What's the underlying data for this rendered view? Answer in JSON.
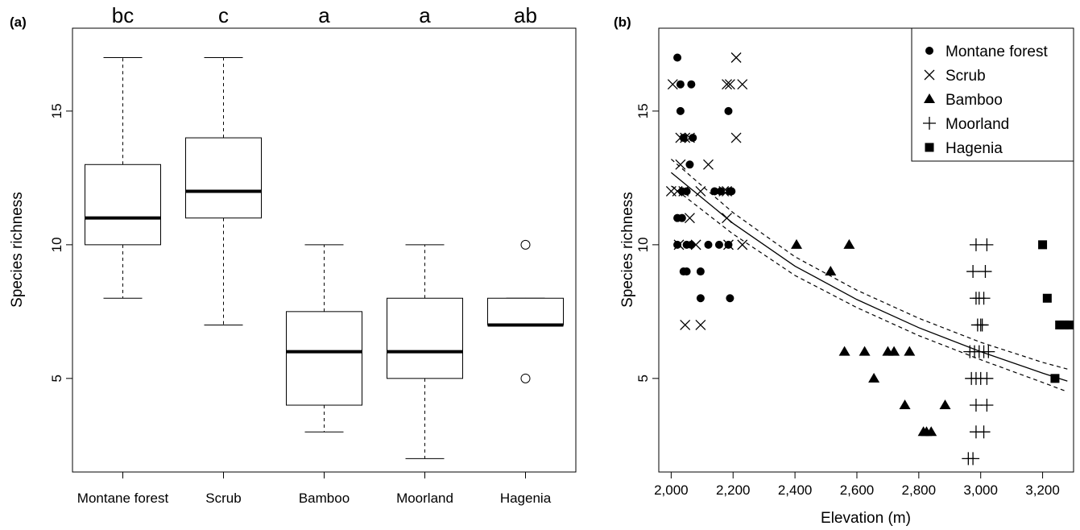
{
  "panels": {
    "a_label": "(a)",
    "b_label": "(b)"
  },
  "chart_data": [
    {
      "type": "box",
      "ylabel": "Species richness",
      "ylim": [
        1.5,
        18.1
      ],
      "yticks": [
        5,
        10,
        15
      ],
      "categories": [
        "Montane forest",
        "Scrub",
        "Bamboo",
        "Moorland",
        "Hagenia"
      ],
      "group_letters": [
        "bc",
        "c",
        "a",
        "a",
        "ab"
      ],
      "boxes": [
        {
          "whisker_low": 8,
          "q1": 10,
          "median": 11,
          "q3": 13,
          "whisker_high": 17,
          "outliers": []
        },
        {
          "whisker_low": 7,
          "q1": 11,
          "median": 12,
          "q3": 14,
          "whisker_high": 17,
          "outliers": []
        },
        {
          "whisker_low": 3,
          "q1": 4,
          "median": 6,
          "q3": 7.5,
          "whisker_high": 10,
          "outliers": []
        },
        {
          "whisker_low": 2,
          "q1": 5,
          "median": 6,
          "q3": 8,
          "whisker_high": 10,
          "outliers": []
        },
        {
          "whisker_low": 7,
          "q1": 7,
          "median": 7,
          "q3": 8,
          "whisker_high": 8,
          "outliers": [
            10,
            5
          ]
        }
      ]
    },
    {
      "type": "scatter",
      "xlabel": "Elevation (m)",
      "ylabel": "Species richness",
      "xlim": [
        1960,
        3300
      ],
      "ylim": [
        1.5,
        18.1
      ],
      "xticks": [
        2000,
        2200,
        2400,
        2600,
        2800,
        3000,
        3200
      ],
      "xtick_labels": [
        "2,000",
        "2,200",
        "2,400",
        "2,600",
        "2,800",
        "3,000",
        "3,200"
      ],
      "yticks": [
        5,
        10,
        15
      ],
      "legend_position": "top-right",
      "series": [
        {
          "name": "Montane forest",
          "marker": "circle",
          "points": [
            [
              2020,
              17
            ],
            [
              2030,
              16
            ],
            [
              2065,
              16
            ],
            [
              2185,
              15
            ],
            [
              2030,
              15
            ],
            [
              2040,
              14
            ],
            [
              2070,
              14
            ],
            [
              2060,
              13
            ],
            [
              2035,
              12
            ],
            [
              2050,
              12
            ],
            [
              2140,
              12
            ],
            [
              2160,
              12
            ],
            [
              2190,
              12
            ],
            [
              2195,
              12
            ],
            [
              2020,
              11
            ],
            [
              2035,
              11
            ],
            [
              2020,
              10
            ],
            [
              2050,
              10
            ],
            [
              2065,
              10
            ],
            [
              2120,
              10
            ],
            [
              2155,
              10
            ],
            [
              2185,
              10
            ],
            [
              2040,
              9
            ],
            [
              2050,
              9
            ],
            [
              2095,
              9
            ],
            [
              2095,
              8
            ],
            [
              2190,
              8
            ]
          ]
        },
        {
          "name": "Scrub",
          "marker": "x",
          "points": [
            [
              2210,
              17
            ],
            [
              2005,
              16
            ],
            [
              2180,
              16
            ],
            [
              2190,
              16
            ],
            [
              2230,
              16
            ],
            [
              2030,
              14
            ],
            [
              2045,
              14
            ],
            [
              2060,
              14
            ],
            [
              2210,
              14
            ],
            [
              2030,
              13
            ],
            [
              2120,
              13
            ],
            [
              2000,
              12
            ],
            [
              2020,
              12
            ],
            [
              2040,
              12
            ],
            [
              2095,
              12
            ],
            [
              2170,
              12
            ],
            [
              2180,
              12
            ],
            [
              2060,
              11
            ],
            [
              2180,
              11
            ],
            [
              2025,
              10
            ],
            [
              2080,
              10
            ],
            [
              2185,
              10
            ],
            [
              2230,
              10
            ],
            [
              2045,
              7
            ],
            [
              2095,
              7
            ]
          ]
        },
        {
          "name": "Bamboo",
          "marker": "triangle",
          "points": [
            [
              2405,
              10
            ],
            [
              2575,
              10
            ],
            [
              2515,
              9
            ],
            [
              2560,
              6
            ],
            [
              2625,
              6
            ],
            [
              2700,
              6
            ],
            [
              2720,
              6
            ],
            [
              2770,
              6
            ],
            [
              2655,
              5
            ],
            [
              2755,
              4
            ],
            [
              2885,
              4
            ],
            [
              2815,
              3
            ],
            [
              2825,
              3
            ],
            [
              2840,
              3
            ]
          ]
        },
        {
          "name": "Moorland",
          "marker": "plus",
          "points": [
            [
              2985,
              10
            ],
            [
              3020,
              10
            ],
            [
              2975,
              9
            ],
            [
              3015,
              9
            ],
            [
              2985,
              8
            ],
            [
              2995,
              8
            ],
            [
              3010,
              8
            ],
            [
              2990,
              7
            ],
            [
              3000,
              7
            ],
            [
              3005,
              7
            ],
            [
              2965,
              6
            ],
            [
              2980,
              6
            ],
            [
              2995,
              6
            ],
            [
              3010,
              6
            ],
            [
              3025,
              6
            ],
            [
              2970,
              5
            ],
            [
              2985,
              5
            ],
            [
              3000,
              5
            ],
            [
              3020,
              5
            ],
            [
              2985,
              4
            ],
            [
              3020,
              4
            ],
            [
              2985,
              3
            ],
            [
              3010,
              3
            ],
            [
              2960,
              2
            ],
            [
              2975,
              2
            ]
          ]
        },
        {
          "name": "Hagenia",
          "marker": "square",
          "points": [
            [
              3200,
              10
            ],
            [
              3215,
              8
            ],
            [
              3255,
              7
            ],
            [
              3270,
              7
            ],
            [
              3285,
              7
            ],
            [
              3240,
              5
            ]
          ]
        }
      ],
      "fit": {
        "x": [
          2000,
          2200,
          2400,
          2600,
          2800,
          3000,
          3200,
          3280
        ],
        "y": [
          12.7,
          10.8,
          9.2,
          7.95,
          6.9,
          6.0,
          5.2,
          4.9
        ],
        "lower": [
          12.2,
          10.4,
          8.85,
          7.65,
          6.6,
          5.7,
          4.85,
          4.5
        ],
        "upper": [
          13.2,
          11.2,
          9.55,
          8.3,
          7.25,
          6.35,
          5.6,
          5.35
        ]
      }
    }
  ]
}
